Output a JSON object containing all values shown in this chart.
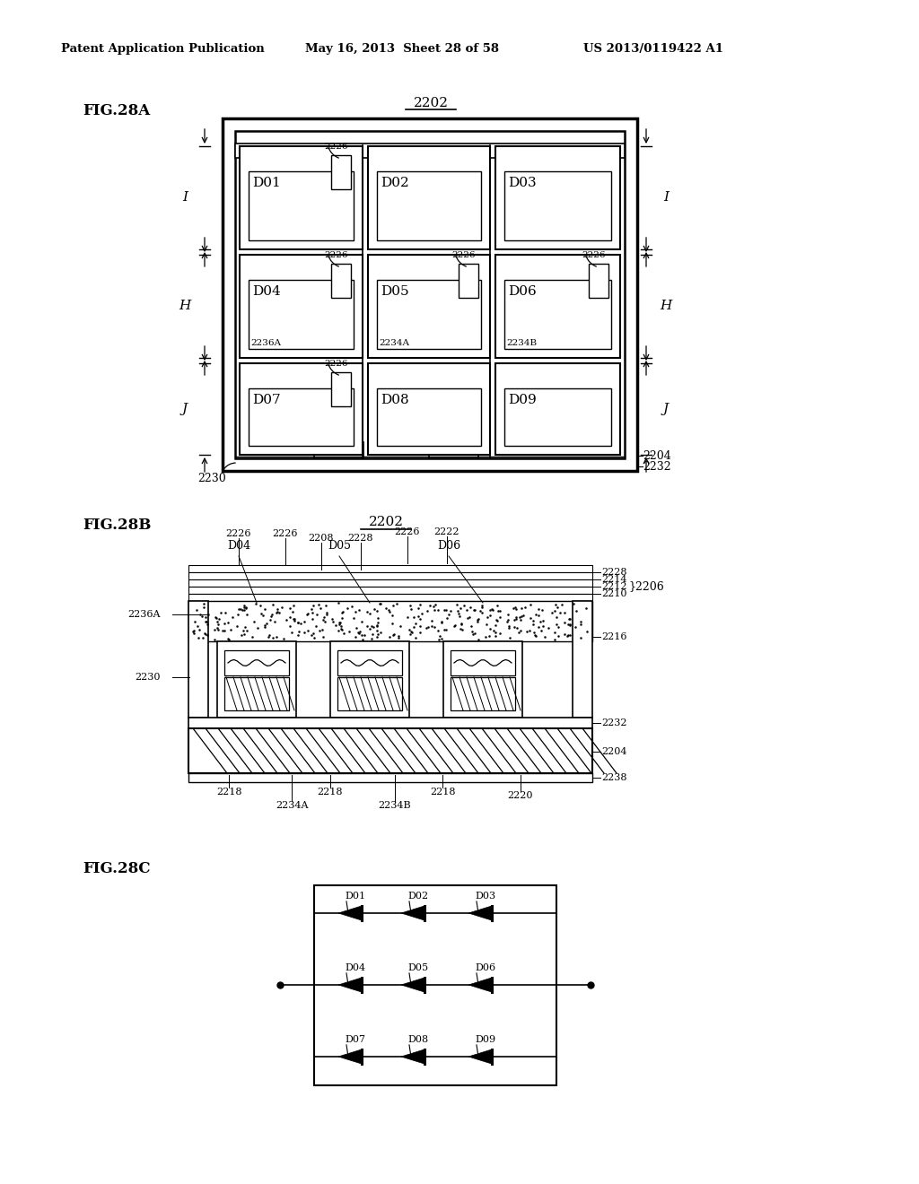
{
  "bg_color": "#ffffff",
  "lc": "#000000",
  "header_left": "Patent Application Publication",
  "header_mid": "May 16, 2013  Sheet 28 of 58",
  "header_right": "US 2013/0119422 A1",
  "fig28a_label": "FIG.28A",
  "fig28b_label": "FIG.28B",
  "fig28c_label": "FIG.28C",
  "cell_labels_row1": [
    "D01",
    "D02",
    "D03"
  ],
  "cell_labels_row2": [
    "D04",
    "D05",
    "D06"
  ],
  "cell_labels_row3": [
    "D07",
    "D08",
    "D09"
  ],
  "row2_sub": [
    "2236A",
    "2234A",
    "2234B"
  ],
  "dim_labels": [
    "I",
    "H",
    "J"
  ],
  "ref_nums_28b_right": [
    "2228",
    "2214",
    "2212",
    "2206",
    "2210",
    "2216",
    "2232",
    "2204",
    "2238"
  ],
  "ref_nums_28b_top": [
    "2226",
    "2226",
    "2208",
    "2228",
    "2226",
    "2222"
  ],
  "ref_nums_28b_left": [
    "2236A",
    "2230"
  ],
  "ref_nums_28b_bot": [
    "2218",
    "2218",
    "2218",
    "2234A",
    "2234B",
    "2220"
  ],
  "circuit_labels": [
    [
      "D01",
      "D02",
      "D03"
    ],
    [
      "D04",
      "D05",
      "D06"
    ],
    [
      "D07",
      "D08",
      "D09"
    ]
  ]
}
